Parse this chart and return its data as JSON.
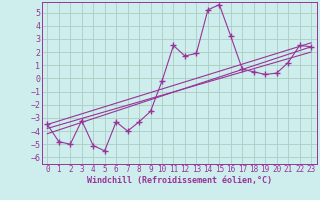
{
  "xlabel": "Windchill (Refroidissement éolien,°C)",
  "bg_color": "#cdeeed",
  "grid_color": "#aaccc0",
  "line_color": "#993399",
  "xlim": [
    -0.5,
    23.5
  ],
  "ylim": [
    -6.5,
    5.8
  ],
  "xticks": [
    0,
    1,
    2,
    3,
    4,
    5,
    6,
    7,
    8,
    9,
    10,
    11,
    12,
    13,
    14,
    15,
    16,
    17,
    18,
    19,
    20,
    21,
    22,
    23
  ],
  "yticks": [
    -6,
    -5,
    -4,
    -3,
    -2,
    -1,
    0,
    1,
    2,
    3,
    4,
    5
  ],
  "main_x": [
    0,
    1,
    2,
    3,
    4,
    5,
    6,
    7,
    8,
    9,
    10,
    11,
    12,
    13,
    14,
    15,
    16,
    17,
    18,
    19,
    20,
    21,
    22,
    23
  ],
  "main_y": [
    -3.5,
    -4.8,
    -5.0,
    -3.2,
    -5.1,
    -5.5,
    -3.3,
    -4.0,
    -3.3,
    -2.5,
    -0.2,
    2.5,
    1.7,
    1.9,
    5.2,
    5.6,
    3.2,
    0.7,
    0.5,
    0.3,
    0.4,
    1.2,
    2.5,
    2.4
  ],
  "trend1_x": [
    0,
    23
  ],
  "trend1_y": [
    -4.2,
    2.4
  ],
  "trend2_x": [
    0,
    23
  ],
  "trend2_y": [
    -3.8,
    2.0
  ],
  "trend3_x": [
    0,
    23
  ],
  "trend3_y": [
    -3.5,
    2.7
  ]
}
